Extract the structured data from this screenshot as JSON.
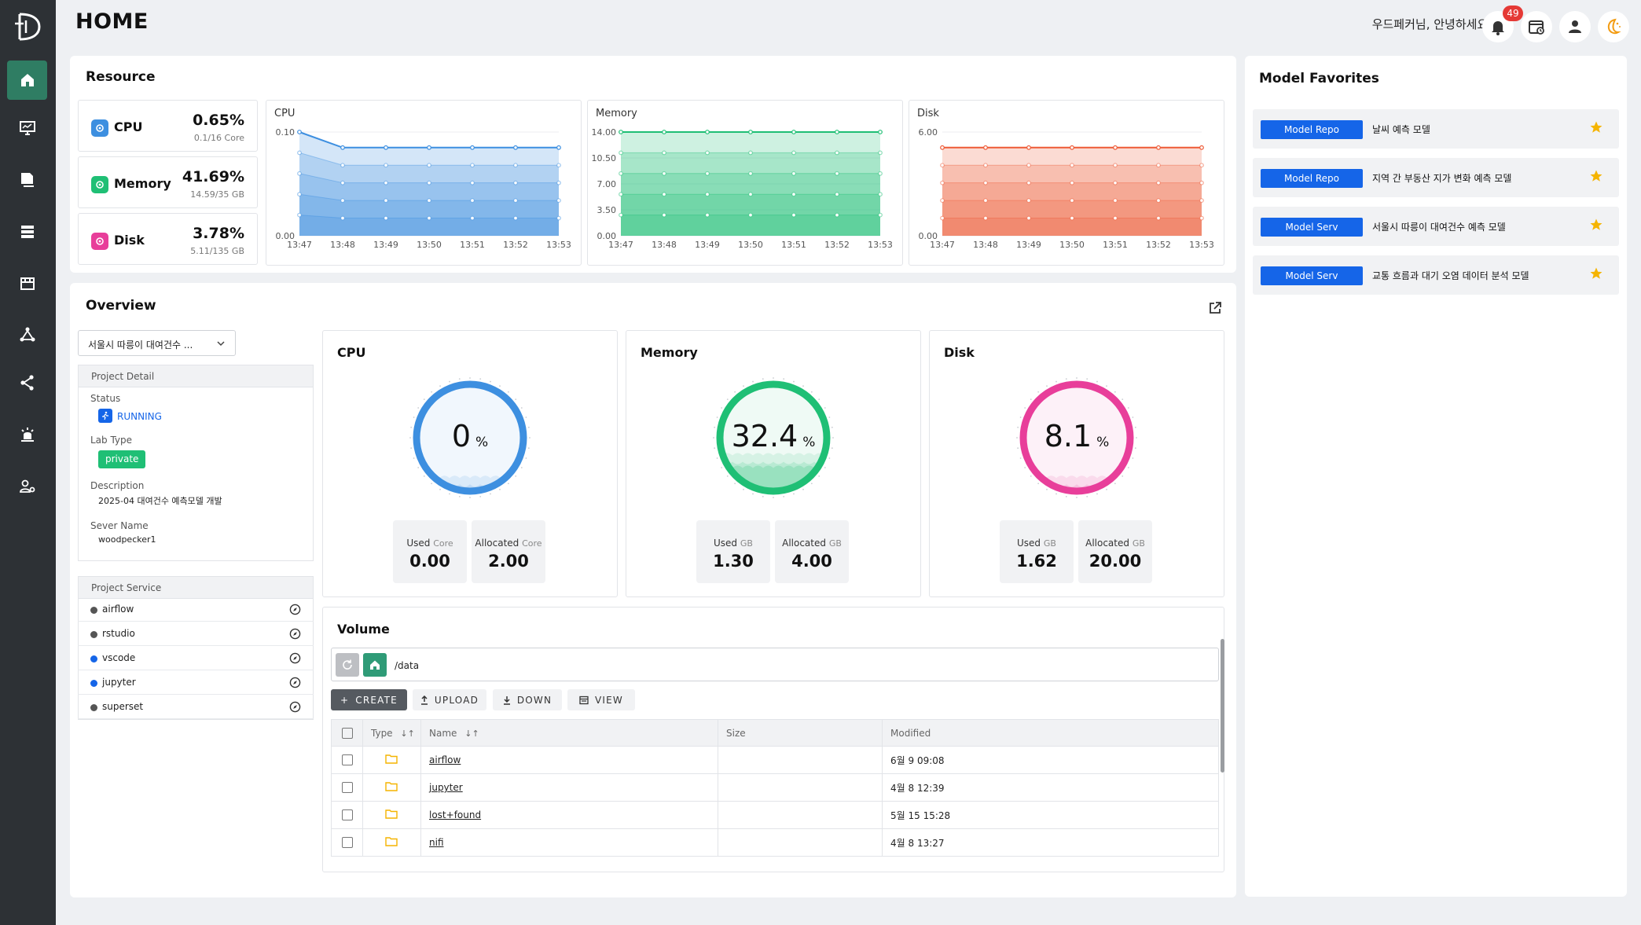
{
  "header": {
    "title": "HOME",
    "greeting": "우드페커님, 안녕하세요.",
    "notification_count": "49"
  },
  "sidebar": {
    "items": [
      {
        "icon": "home-icon",
        "active": true
      },
      {
        "icon": "monitor-icon",
        "active": false
      },
      {
        "icon": "folder-icon",
        "active": false
      },
      {
        "icon": "server-icon",
        "active": false
      },
      {
        "icon": "store-icon",
        "active": false
      },
      {
        "icon": "network-icon",
        "active": false
      },
      {
        "icon": "share-icon",
        "active": false
      },
      {
        "icon": "bug-icon",
        "active": false
      },
      {
        "icon": "user-settings-icon",
        "active": false
      }
    ]
  },
  "resource": {
    "title": "Resource",
    "summary": [
      {
        "label": "CPU",
        "percent": "0.65%",
        "detail": "0.1/16 Core",
        "color": "#3d8fe0"
      },
      {
        "label": "Memory",
        "percent": "41.69%",
        "detail": "14.59/35 GB",
        "color": "#1fbf75"
      },
      {
        "label": "Disk",
        "percent": "3.78%",
        "detail": "5.11/135 GB",
        "color": "#e83e9a"
      }
    ]
  },
  "chart_data": [
    {
      "type": "area",
      "title": "CPU",
      "x": [
        "13:47",
        "13:48",
        "13:49",
        "13:50",
        "13:51",
        "13:52",
        "13:53"
      ],
      "yticks": [
        "0.10",
        "0.00"
      ],
      "ylim": [
        0,
        0.1
      ],
      "series": [
        {
          "values": [
            0.1,
            0.085,
            0.085,
            0.085,
            0.085,
            0.085,
            0.085
          ]
        }
      ],
      "color": "#3d8fe0"
    },
    {
      "type": "area",
      "title": "Memory",
      "x": [
        "13:47",
        "13:48",
        "13:49",
        "13:50",
        "13:51",
        "13:52",
        "13:53"
      ],
      "yticks": [
        "14.00",
        "10.50",
        "7.00",
        "3.50",
        "0.00"
      ],
      "ylim": [
        0,
        14
      ],
      "series": [
        {
          "values": [
            14.0,
            14.0,
            14.0,
            14.0,
            14.0,
            14.0,
            14.0
          ]
        }
      ],
      "color": "#1fbf75"
    },
    {
      "type": "area",
      "title": "Disk",
      "x": [
        "13:47",
        "13:48",
        "13:49",
        "13:50",
        "13:51",
        "13:52",
        "13:53"
      ],
      "yticks": [
        "6.00",
        "0.00"
      ],
      "ylim": [
        0,
        6
      ],
      "series": [
        {
          "values": [
            5.1,
            5.1,
            5.1,
            5.1,
            5.1,
            5.1,
            5.1
          ]
        }
      ],
      "color": "#ee5a36"
    }
  ],
  "favorites": {
    "title": "Model Favorites",
    "items": [
      {
        "tag": "Model Repo",
        "name": "날씨 예측 모델"
      },
      {
        "tag": "Model Repo",
        "name": "지역 간 부동산 지가 변화 예측 모델"
      },
      {
        "tag": "Model Serv",
        "name": "서울시 따릉이 대여건수 예측 모델"
      },
      {
        "tag": "Model Serv",
        "name": "교통 흐름과 대기 오염 데이터 분석 모델"
      }
    ]
  },
  "overview": {
    "title": "Overview",
    "selected_project": "서울시 따릉이 대여건수 ...",
    "project_detail": {
      "header": "Project Detail",
      "status_label": "Status",
      "status": "RUNNING",
      "lab_type_label": "Lab Type",
      "lab_type": "private",
      "description_label": "Description",
      "description": "2025-04 대여건수 예측모델 개발",
      "server_name_label": "Sever Name",
      "server_name": "woodpecker1"
    },
    "project_service": {
      "header": "Project Service",
      "items": [
        {
          "name": "airflow",
          "color": "#555555"
        },
        {
          "name": "rstudio",
          "color": "#555555"
        },
        {
          "name": "vscode",
          "color": "#1565e8"
        },
        {
          "name": "jupyter",
          "color": "#1565e8"
        },
        {
          "name": "superset",
          "color": "#555555"
        }
      ]
    },
    "gauges": [
      {
        "title": "CPU",
        "value": "0",
        "unit": "%",
        "level": 0,
        "color": "#3d8fe0",
        "used_label": "Used",
        "used_unit": "Core",
        "used": "0.00",
        "alloc_label": "Allocated",
        "alloc_unit": "Core",
        "alloc": "2.00"
      },
      {
        "title": "Memory",
        "value": "32.4",
        "unit": "%",
        "level": 32.4,
        "color": "#1fbf75",
        "used_label": "Used",
        "used_unit": "GB",
        "used": "1.30",
        "alloc_label": "Allocated",
        "alloc_unit": "GB",
        "alloc": "4.00"
      },
      {
        "title": "Disk",
        "value": "8.1",
        "unit": "%",
        "level": 8.1,
        "color": "#e83e9a",
        "used_label": "Used",
        "used_unit": "GB",
        "used": "1.62",
        "alloc_label": "Allocated",
        "alloc_unit": "GB",
        "alloc": "20.00"
      }
    ]
  },
  "volume": {
    "title": "Volume",
    "path": "/data",
    "buttons": {
      "create": "CREATE",
      "upload": "UPLOAD",
      "down": "DOWN",
      "view": "VIEW"
    },
    "columns": {
      "type": "Type",
      "name": "Name",
      "size": "Size",
      "modified": "Modified"
    },
    "files": [
      {
        "name": "airflow",
        "size": "",
        "modified": "6월 9 09:08"
      },
      {
        "name": "jupyter",
        "size": "",
        "modified": "4월 8 12:39"
      },
      {
        "name": "lost+found",
        "size": "",
        "modified": "5월 15 15:28"
      },
      {
        "name": "nifi",
        "size": "",
        "modified": "4월 8 13:27"
      }
    ]
  }
}
